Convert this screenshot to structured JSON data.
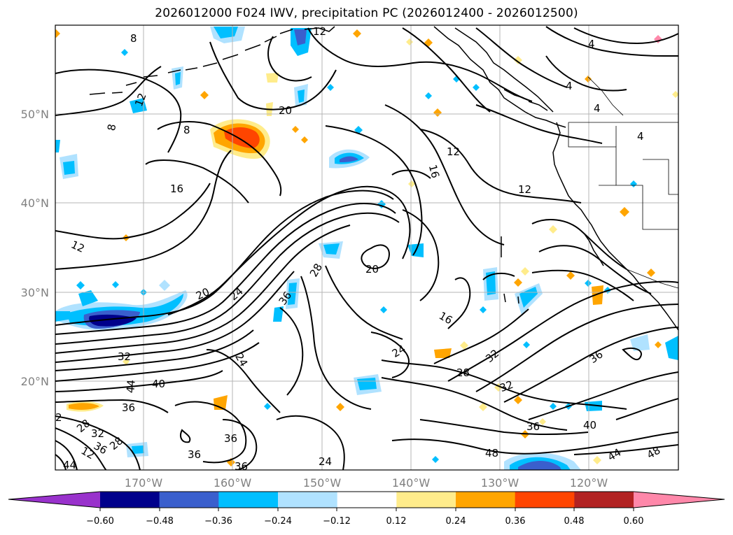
{
  "title": "2026012000 F024 IWV, precipitation PC (2026012400 - 2026012500)",
  "latitude_labels": [
    "50°N",
    "40°N",
    "30°N",
    "20°N"
  ],
  "longitude_labels": [
    "170°W",
    "160°W",
    "150°W",
    "140°W",
    "130°W",
    "120°W"
  ],
  "colorbar": {
    "ticks": [
      "−0.60",
      "−0.48",
      "−0.36",
      "−0.24",
      "−0.12",
      "0.12",
      "0.24",
      "0.36",
      "0.48",
      "0.60"
    ],
    "colors": [
      "#9932cc",
      "#00008b",
      "#3a5fcd",
      "#00bfff",
      "#b0e2ff",
      "#ffffff",
      "#ffec8b",
      "#ffa500",
      "#ff4500",
      "#b22222",
      "#ff88aa"
    ]
  },
  "contour_labels": [
    "8",
    "12",
    "12",
    "8",
    "4",
    "4",
    "4",
    "4",
    "20",
    "8",
    "16",
    "12",
    "16",
    "12",
    "12",
    "20",
    "20",
    "24",
    "36",
    "28",
    "16",
    "32",
    "24",
    "44",
    "40",
    "36",
    "2",
    "28",
    "32",
    "36",
    "28",
    "12",
    "36",
    "24",
    "24",
    "28",
    "32",
    "32",
    "36",
    "36",
    "40",
    "48",
    "44",
    "48"
  ]
}
